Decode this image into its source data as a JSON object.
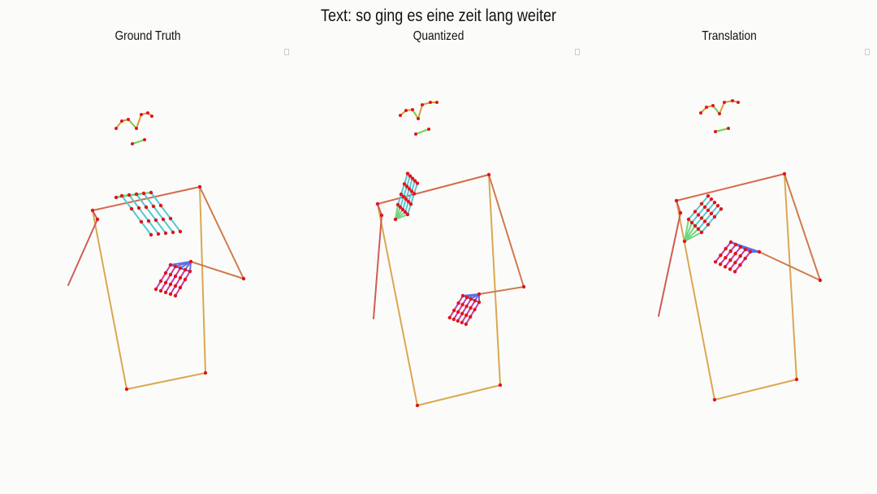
{
  "title": "Text: so ging es eine zeit lang weiter",
  "panels": [
    {
      "label": "Ground Truth"
    },
    {
      "label": "Quantized"
    },
    {
      "label": "Translation"
    }
  ],
  "colors": {
    "background": "#fbfcfa",
    "shoulders": "#d56a4a",
    "arms_right": "#cf7a4c",
    "arms_left": "#d05c55",
    "torso": "#dba750",
    "face": "#d99a3a",
    "face_green": "#7ad05a",
    "hand_right_palm": "#5f6fe6",
    "hand_right_fingers": "#c43aa8",
    "hand_left_green": "#6fd680",
    "hand_left_cyan": "#55c8d6",
    "keypoint": "#e0141e"
  }
}
